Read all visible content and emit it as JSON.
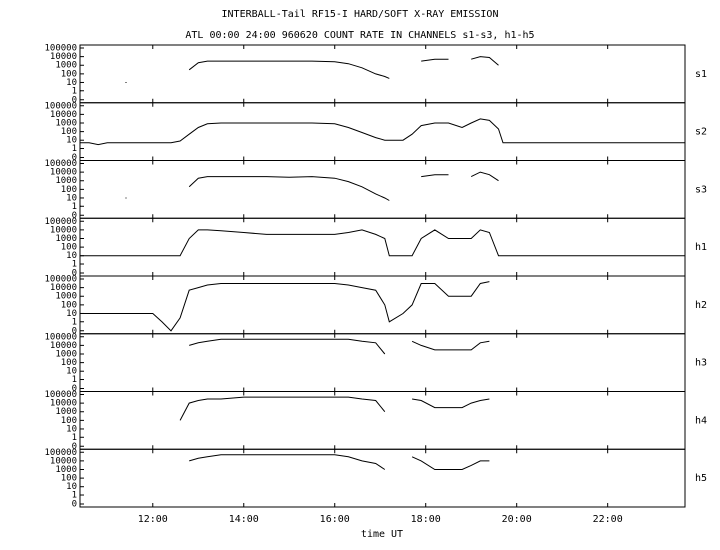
{
  "chart_data": {
    "type": "line",
    "title": "INTERBALL-Tail RF15-I HARD/SOFT X-RAY EMISSION",
    "subtitle": "ATL 00:00 24:00 960620  COUNT RATE IN CHANNELS s1-s3, h1-h5",
    "xlabel": "time UT",
    "yscale": "symlog",
    "color": "#000000",
    "xlim": [
      10.4,
      23.7
    ],
    "xticks": [
      {
        "value": 12,
        "label": "12:00"
      },
      {
        "value": 14,
        "label": "14:00"
      },
      {
        "value": 16,
        "label": "16:00"
      },
      {
        "value": 18,
        "label": "18:00"
      },
      {
        "value": 20,
        "label": "20:00"
      },
      {
        "value": 22,
        "label": "22:00"
      }
    ],
    "ylim": [
      0,
      100000
    ],
    "yticks": [
      100000,
      10000,
      1000,
      100,
      10,
      1,
      0
    ],
    "x": [
      10.4,
      10.6,
      10.8,
      11.0,
      11.2,
      11.4,
      11.6,
      11.8,
      12.0,
      12.2,
      12.4,
      12.6,
      12.8,
      13.0,
      13.2,
      13.5,
      14.0,
      14.5,
      15.0,
      15.5,
      16.0,
      16.3,
      16.6,
      16.9,
      17.1,
      17.2,
      17.5,
      17.7,
      17.9,
      18.2,
      18.5,
      18.8,
      19.0,
      19.2,
      19.4,
      19.6,
      19.7,
      20.0,
      20.5,
      21.0,
      21.5,
      22.0,
      22.5,
      23.0,
      23.5,
      23.7
    ],
    "series": [
      {
        "name": "s1",
        "values": [
          1,
          null,
          null,
          null,
          null,
          10,
          null,
          null,
          null,
          null,
          null,
          null,
          300,
          2000,
          3000,
          3000,
          3000,
          3000,
          3000,
          3000,
          2500,
          1500,
          500,
          100,
          50,
          30,
          null,
          null,
          3000,
          5000,
          5000,
          null,
          5000,
          10000,
          8000,
          1000,
          null,
          null,
          null,
          null,
          null,
          null,
          null,
          null,
          null,
          null
        ]
      },
      {
        "name": "s2",
        "values": [
          5,
          5,
          3,
          5,
          5,
          5,
          5,
          5,
          5,
          5,
          5,
          8,
          50,
          300,
          800,
          1000,
          1000,
          1000,
          1000,
          1000,
          800,
          300,
          80,
          20,
          10,
          10,
          10,
          50,
          500,
          1000,
          1000,
          300,
          1000,
          3000,
          2000,
          200,
          5,
          5,
          5,
          5,
          5,
          5,
          5,
          5,
          5,
          5
        ]
      },
      {
        "name": "s3",
        "values": [
          1,
          null,
          null,
          null,
          null,
          10,
          null,
          null,
          null,
          null,
          null,
          null,
          200,
          2000,
          3000,
          3000,
          3000,
          3000,
          2500,
          3000,
          2000,
          800,
          200,
          30,
          10,
          5,
          null,
          null,
          3000,
          5000,
          5000,
          null,
          3000,
          10000,
          5000,
          1000,
          null,
          null,
          null,
          null,
          null,
          null,
          null,
          null,
          null,
          null
        ]
      },
      {
        "name": "h1",
        "values": [
          10,
          10,
          10,
          10,
          10,
          10,
          10,
          10,
          10,
          10,
          10,
          10,
          1000,
          10000,
          10000,
          8000,
          5000,
          3000,
          3000,
          3000,
          3000,
          5000,
          10000,
          3000,
          1000,
          10,
          10,
          10,
          1000,
          10000,
          1000,
          1000,
          1000,
          10000,
          5000,
          10,
          10,
          10,
          10,
          10,
          10,
          10,
          10,
          10,
          10,
          10
        ]
      },
      {
        "name": "h2",
        "values": [
          10,
          10,
          10,
          10,
          10,
          10,
          10,
          10,
          10,
          1,
          0,
          3,
          5000,
          10000,
          20000,
          30000,
          30000,
          30000,
          30000,
          30000,
          30000,
          20000,
          10000,
          5000,
          100,
          1,
          10,
          100,
          30000,
          30000,
          1000,
          1000,
          1000,
          30000,
          50000,
          null,
          null,
          null,
          null,
          null,
          null,
          null,
          null,
          null,
          null,
          null
        ]
      },
      {
        "name": "h3",
        "values": [
          null,
          null,
          null,
          null,
          null,
          null,
          null,
          null,
          null,
          null,
          null,
          null,
          10000,
          20000,
          30000,
          50000,
          50000,
          50000,
          50000,
          50000,
          50000,
          50000,
          30000,
          20000,
          1000,
          null,
          null,
          30000,
          10000,
          3000,
          3000,
          3000,
          3000,
          20000,
          30000,
          null,
          null,
          null,
          null,
          null,
          null,
          null,
          null,
          null,
          null,
          null
        ]
      },
      {
        "name": "h4",
        "values": [
          null,
          null,
          null,
          null,
          null,
          null,
          null,
          null,
          null,
          null,
          null,
          100,
          10000,
          20000,
          30000,
          30000,
          50000,
          50000,
          50000,
          50000,
          50000,
          50000,
          30000,
          20000,
          1000,
          null,
          null,
          30000,
          20000,
          3000,
          3000,
          3000,
          10000,
          20000,
          30000,
          null,
          null,
          null,
          null,
          null,
          null,
          null,
          null,
          null,
          null,
          null
        ]
      },
      {
        "name": "h5",
        "values": [
          null,
          null,
          null,
          null,
          null,
          null,
          null,
          null,
          null,
          null,
          null,
          null,
          10000,
          20000,
          30000,
          50000,
          50000,
          50000,
          50000,
          50000,
          50000,
          30000,
          10000,
          5000,
          1000,
          null,
          null,
          30000,
          10000,
          1000,
          1000,
          1000,
          3000,
          10000,
          10000,
          null,
          null,
          null,
          null,
          null,
          null,
          null,
          null,
          null,
          null,
          null
        ]
      }
    ]
  }
}
